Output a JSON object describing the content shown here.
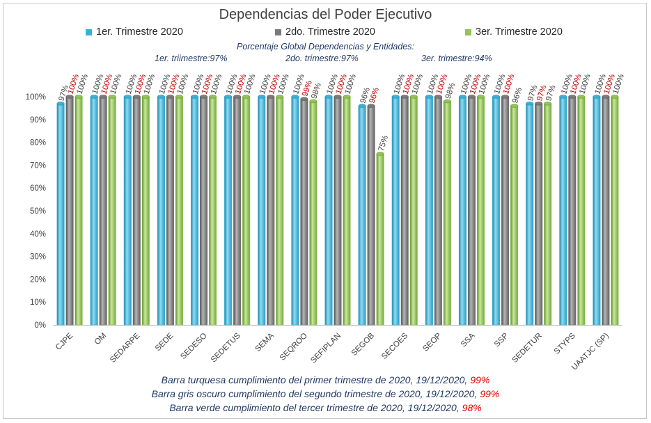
{
  "chart_data": {
    "type": "bar",
    "title": "Dependencias del Poder Ejecutivo",
    "categories": [
      "CJPE",
      "OM",
      "SEDARPE",
      "SEDE",
      "SEDESO",
      "SEDETUS",
      "SEMA",
      "SEQROO",
      "SEFIPLAN",
      "SEGOB",
      "SECOES",
      "SEOP",
      "SSA",
      "SSP",
      "SEDETUR",
      "STYPS",
      "UAATJC (SP)"
    ],
    "series": [
      {
        "name": "1er. Trimestre 2020",
        "color": "#3ab0d6",
        "label_color": "#404040",
        "values": [
          97,
          100,
          100,
          100,
          100,
          100,
          100,
          100,
          100,
          96,
          100,
          100,
          100,
          100,
          97,
          100,
          100
        ]
      },
      {
        "name": "2do. Trimestre 2020",
        "color": "#7a7a7a",
        "label_color": "#c00000",
        "values": [
          100,
          100,
          100,
          100,
          100,
          100,
          100,
          99,
          100,
          96,
          100,
          100,
          100,
          100,
          97,
          100,
          100
        ]
      },
      {
        "name": "3er. Trimestre 2020",
        "color": "#92c353",
        "label_color": "#404040",
        "values": [
          100,
          100,
          100,
          100,
          100,
          100,
          100,
          98,
          100,
          75,
          100,
          98,
          100,
          96,
          97,
          100,
          100
        ]
      }
    ],
    "ylim": [
      0,
      100
    ],
    "yticks": [
      0,
      10,
      20,
      30,
      40,
      50,
      60,
      70,
      80,
      90,
      100
    ],
    "tick_format": "%",
    "legend": "top",
    "grid": false
  },
  "subtitle": "Porcentaje Global  Dependencias y Entidades:",
  "quarters": [
    "1er. triimestre:97%",
    "2do. trimestre:97%",
    "3er. trimestre:94%"
  ],
  "footnotes": [
    {
      "text": "Barra turquesa  cumplimiento  del  primer  trimestre  de  2020,   19/12/2020,",
      "pct": "99%"
    },
    {
      "text": "Barra  gris  oscuro  cumplimiento  del  segundo  trimestre  de  2020,   19/12/2020,",
      "pct": "99%"
    },
    {
      "text": "Barra  verde  cumplimiento  del  tercer  trimestre  de  2020,   19/12/2020,",
      "pct": "98%"
    }
  ]
}
